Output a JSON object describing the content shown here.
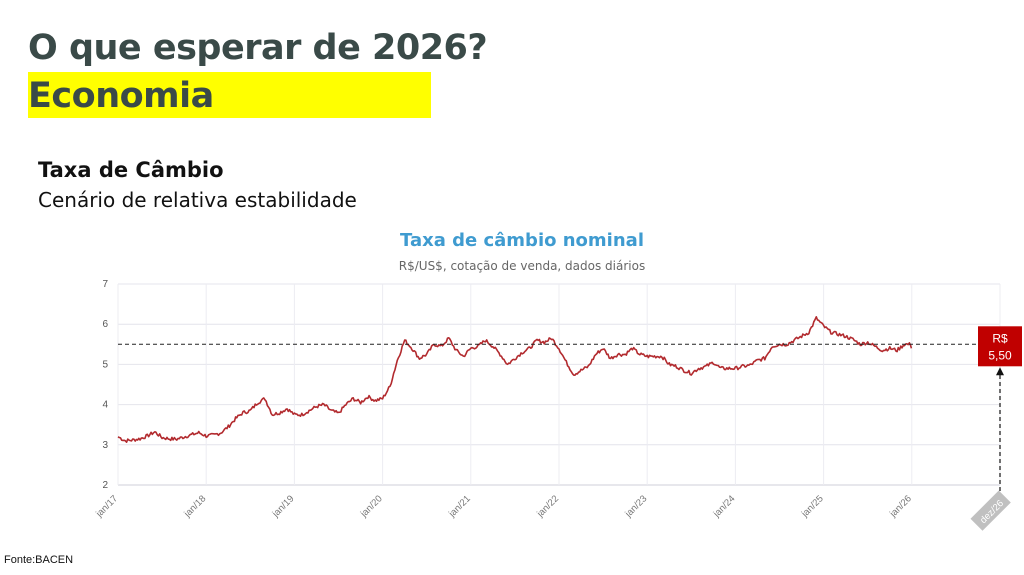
{
  "header": {
    "title": "O que esperar de 2026?",
    "section": "Economia"
  },
  "content": {
    "heading": "Taxa de Câmbio",
    "subheading": "Cenário de relativa estabilidade"
  },
  "footer": {
    "source": "Fonte:BACEN"
  },
  "colors": {
    "line": "#b22a2e",
    "badge": "#c00000",
    "highlight": "#ffff00",
    "title_blue": "#3f9bd0",
    "projection_tag": "#c0c0c0"
  },
  "chart_data": {
    "type": "line",
    "title": "Taxa de câmbio nominal",
    "subtitle": "R$/US$, cotação de venda, dados diários",
    "xlabel": "",
    "ylabel": "",
    "ylim": [
      2,
      7
    ],
    "yticks": [
      2,
      3,
      4,
      5,
      6,
      7
    ],
    "grid": true,
    "x_ticks": [
      "jan/17",
      "jan/18",
      "jan/19",
      "jan/20",
      "jan/21",
      "jan/22",
      "jan/23",
      "jan/24",
      "jan/25",
      "jan/26",
      "dez/26"
    ],
    "series": [
      {
        "name": "",
        "x": [
          "2017-01",
          "2017-02",
          "2017-03",
          "2017-04",
          "2017-05",
          "2017-06",
          "2017-07",
          "2017-08",
          "2017-09",
          "2017-10",
          "2017-11",
          "2017-12",
          "2018-01",
          "2018-02",
          "2018-03",
          "2018-04",
          "2018-05",
          "2018-06",
          "2018-07",
          "2018-08",
          "2018-09",
          "2018-10",
          "2018-11",
          "2018-12",
          "2019-01",
          "2019-02",
          "2019-03",
          "2019-04",
          "2019-05",
          "2019-06",
          "2019-07",
          "2019-08",
          "2019-09",
          "2019-10",
          "2019-11",
          "2019-12",
          "2020-01",
          "2020-02",
          "2020-03",
          "2020-04",
          "2020-05",
          "2020-06",
          "2020-07",
          "2020-08",
          "2020-09",
          "2020-10",
          "2020-11",
          "2020-12",
          "2021-01",
          "2021-02",
          "2021-03",
          "2021-04",
          "2021-05",
          "2021-06",
          "2021-07",
          "2021-08",
          "2021-09",
          "2021-10",
          "2021-11",
          "2021-12",
          "2022-01",
          "2022-02",
          "2022-03",
          "2022-04",
          "2022-05",
          "2022-06",
          "2022-07",
          "2022-08",
          "2022-09",
          "2022-10",
          "2022-11",
          "2022-12",
          "2023-01",
          "2023-02",
          "2023-03",
          "2023-04",
          "2023-05",
          "2023-06",
          "2023-07",
          "2023-08",
          "2023-09",
          "2023-10",
          "2023-11",
          "2023-12",
          "2024-01",
          "2024-02",
          "2024-03",
          "2024-04",
          "2024-05",
          "2024-06",
          "2024-07",
          "2024-08",
          "2024-09",
          "2024-10",
          "2024-11",
          "2024-12",
          "2025-01",
          "2025-02",
          "2025-03",
          "2025-04",
          "2025-05",
          "2025-06",
          "2025-07",
          "2025-08",
          "2025-09",
          "2025-10",
          "2025-11",
          "2025-12"
        ],
        "values": [
          3.2,
          3.1,
          3.12,
          3.15,
          3.22,
          3.32,
          3.18,
          3.15,
          3.14,
          3.2,
          3.25,
          3.3,
          3.22,
          3.24,
          3.3,
          3.45,
          3.65,
          3.8,
          3.85,
          4.05,
          4.15,
          3.75,
          3.8,
          3.9,
          3.75,
          3.75,
          3.85,
          3.95,
          4.0,
          3.85,
          3.78,
          4.0,
          4.15,
          4.05,
          4.2,
          4.1,
          4.15,
          4.45,
          5.1,
          5.6,
          5.4,
          5.15,
          5.25,
          5.5,
          5.45,
          5.65,
          5.35,
          5.2,
          5.4,
          5.45,
          5.6,
          5.45,
          5.25,
          5.0,
          5.15,
          5.3,
          5.4,
          5.6,
          5.55,
          5.65,
          5.4,
          5.05,
          4.75,
          4.85,
          4.95,
          5.25,
          5.4,
          5.15,
          5.25,
          5.25,
          5.4,
          5.25,
          5.2,
          5.2,
          5.2,
          5.0,
          4.95,
          4.85,
          4.78,
          4.9,
          4.95,
          5.05,
          4.9,
          4.9,
          4.9,
          4.95,
          4.98,
          5.1,
          5.15,
          5.45,
          5.5,
          5.5,
          5.6,
          5.7,
          5.8,
          6.15,
          5.95,
          5.8,
          5.75,
          5.7,
          5.62,
          5.5,
          5.55,
          5.45,
          5.35,
          5.4,
          5.35,
          5.5
        ]
      }
    ],
    "projection": {
      "label": "R$ 5,50",
      "line1": "R$",
      "line2": "5,50",
      "value": 5.5,
      "date": "dez/26"
    }
  }
}
